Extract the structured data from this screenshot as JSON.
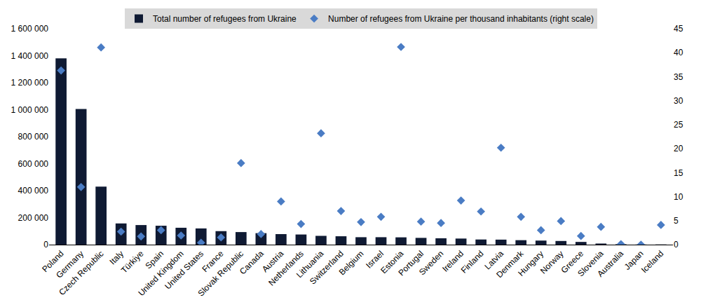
{
  "chart_data": {
    "type": "bar",
    "categories": [
      "Poland",
      "Germany",
      "Czech Republic",
      "Italy",
      "Türkiye",
      "Spain",
      "United Kingdom",
      "United States",
      "France",
      "Slovak Republic",
      "Canada",
      "Austria",
      "Netherlands",
      "Lithuania",
      "Switzerland",
      "Belgium",
      "Israel",
      "Estonia",
      "Portugal",
      "Sweden",
      "Ireland",
      "Finland",
      "Latvia",
      "Denmark",
      "Hungary",
      "Norway",
      "Greece",
      "Slovenia",
      "Australia",
      "Japan",
      "Iceland"
    ],
    "series": [
      {
        "name": "Total number of refugees from Ukraine",
        "type": "bar",
        "color": "#0f1a33",
        "values": [
          1380000,
          1005000,
          430000,
          157000,
          145000,
          140000,
          125000,
          120000,
          100000,
          93000,
          85000,
          78000,
          75000,
          65000,
          62000,
          55000,
          55000,
          54000,
          50000,
          47000,
          45000,
          38000,
          37000,
          33000,
          30000,
          27000,
          20000,
          8000,
          3000,
          1000,
          1500
        ]
      },
      {
        "name": "Number of refugees from Ukraine per thousand inhabitants (right scale)",
        "type": "scatter",
        "marker": "diamond",
        "axis": "y2",
        "color": "#4a7cc4",
        "values": [
          36.3,
          12,
          41.1,
          2.7,
          1.7,
          3,
          1.9,
          0.4,
          1.5,
          17,
          2.2,
          9,
          4.3,
          23.2,
          7,
          4.7,
          5.8,
          41.2,
          4.8,
          4.5,
          9.2,
          6.9,
          20.2,
          5.8,
          3,
          4.9,
          1.8,
          3.7,
          0.1,
          0,
          4.1
        ]
      }
    ],
    "ylim": [
      0,
      1600000
    ],
    "yticks": [
      0,
      {
        "value": 200000,
        "label": "200 000"
      },
      {
        "value": 400000,
        "label": "400 000"
      },
      {
        "value": 600000,
        "label": "600 000"
      },
      {
        "value": 800000,
        "label": "800 000"
      },
      {
        "value": 1000000,
        "label": "1 000 000"
      },
      {
        "value": 1200000,
        "label": "1 200 000"
      },
      {
        "value": 1400000,
        "label": "1 400 000"
      },
      {
        "value": 1600000,
        "label": "1 600 000"
      }
    ],
    "y2lim": [
      0,
      45
    ],
    "y2ticks": [
      0,
      5,
      10,
      15,
      20,
      25,
      30,
      35,
      40,
      45
    ],
    "grid": false,
    "legend": "top"
  }
}
